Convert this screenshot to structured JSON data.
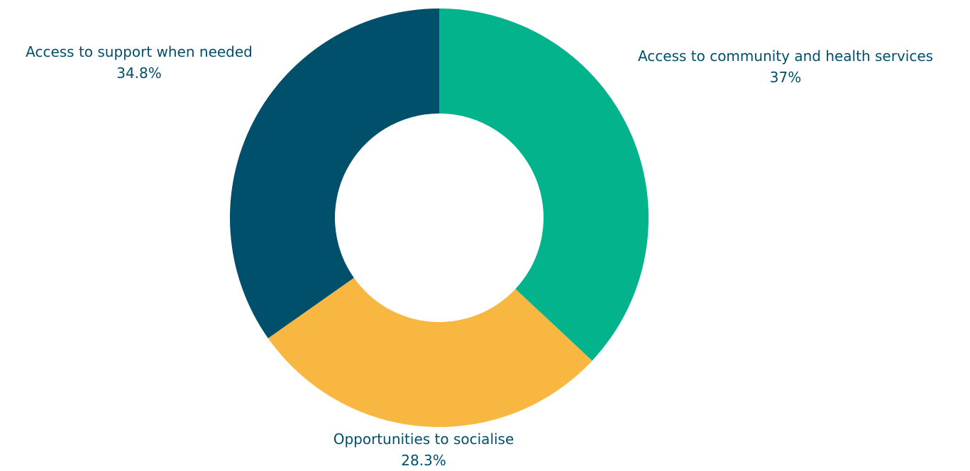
{
  "chart_data": {
    "type": "pie",
    "variant": "donut",
    "title": "",
    "legend": "none",
    "slices": [
      {
        "label": "Access to community and health services",
        "value": 37,
        "value_label": "37%",
        "color": "#03b38c"
      },
      {
        "label": "Opportunities to socialise",
        "value": 28.3,
        "value_label": "28.3%",
        "color": "#f7b740"
      },
      {
        "label": "Access to support when needed",
        "value": 34.8,
        "value_label": "34.8%",
        "color": "#004f6b"
      }
    ]
  }
}
